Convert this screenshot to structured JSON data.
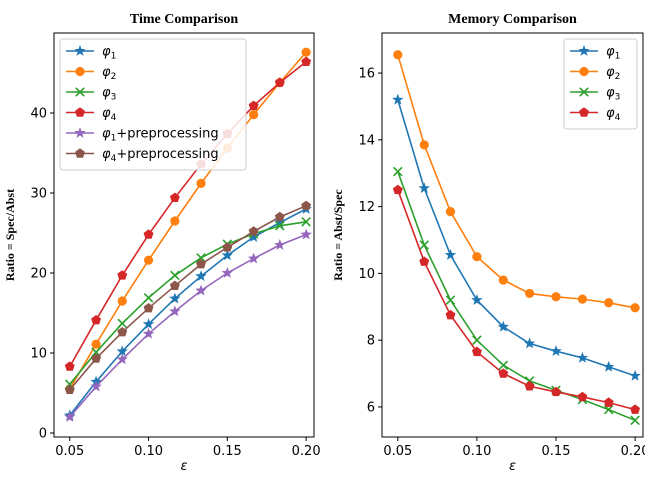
{
  "chart_data": [
    {
      "type": "line",
      "title": "Time Comparison",
      "xlabel": "ε",
      "ylabel": "Ratio = Spec/Abst",
      "xlim": [
        0.04,
        0.205
      ],
      "ylim": [
        -0.5,
        50
      ],
      "xticks": [
        0.05,
        0.1,
        0.15,
        0.2
      ],
      "xtick_labels": [
        "0.05",
        "0.10",
        "0.15",
        "0.20"
      ],
      "yticks": [
        0,
        10,
        20,
        30,
        40
      ],
      "ytick_labels": [
        "0",
        "10",
        "20",
        "30",
        "40"
      ],
      "legend_position": "top-left",
      "x": [
        0.05,
        0.0667,
        0.0833,
        0.1,
        0.1167,
        0.1333,
        0.15,
        0.1667,
        0.1833,
        0.2
      ],
      "series": [
        {
          "name": "φ1",
          "color": "#1f77b4",
          "marker": "star",
          "values": [
            2.2,
            6.4,
            10.2,
            13.6,
            16.8,
            19.6,
            22.2,
            24.5,
            26.3,
            28.0
          ]
        },
        {
          "name": "φ2",
          "color": "#ff7f0e",
          "marker": "circle",
          "values": [
            5.5,
            11.1,
            16.5,
            21.6,
            26.5,
            31.2,
            35.6,
            39.8,
            43.8,
            47.6
          ]
        },
        {
          "name": "φ3",
          "color": "#2ca02c",
          "marker": "x",
          "values": [
            6.1,
            10.1,
            13.7,
            16.9,
            19.7,
            21.9,
            23.6,
            24.9,
            25.9,
            26.4
          ]
        },
        {
          "name": "φ4",
          "color": "#d62728",
          "marker": "pentagon",
          "values": [
            8.3,
            14.1,
            19.7,
            24.8,
            29.4,
            33.6,
            37.4,
            40.9,
            43.8,
            46.4
          ]
        },
        {
          "name": "φ1+preprocessing",
          "color": "#9467bd",
          "marker": "star",
          "values": [
            2.0,
            5.8,
            9.2,
            12.4,
            15.2,
            17.8,
            20.0,
            21.8,
            23.5,
            24.8
          ]
        },
        {
          "name": "φ4+preprocessing",
          "color": "#8c564b",
          "marker": "pentagon",
          "values": [
            5.4,
            9.3,
            12.6,
            15.6,
            18.4,
            21.1,
            23.2,
            25.2,
            27.0,
            28.4
          ]
        }
      ],
      "legend_labels": [
        {
          "base": "φ",
          "sub": "1",
          "suffix": ""
        },
        {
          "base": "φ",
          "sub": "2",
          "suffix": ""
        },
        {
          "base": "φ",
          "sub": "3",
          "suffix": ""
        },
        {
          "base": "φ",
          "sub": "4",
          "suffix": ""
        },
        {
          "base": "φ",
          "sub": "1",
          "suffix": "+preprocessing"
        },
        {
          "base": "φ",
          "sub": "4",
          "suffix": "+preprocessing"
        }
      ]
    },
    {
      "type": "line",
      "title": "Memory Comparison",
      "xlabel": "ε",
      "ylabel": "Ratio = Abst/Spec",
      "xlim": [
        0.04,
        0.205
      ],
      "ylim": [
        5.1,
        17.2
      ],
      "xticks": [
        0.05,
        0.1,
        0.15,
        0.2
      ],
      "xtick_labels": [
        "0.05",
        "0.10",
        "0.15",
        "0.20"
      ],
      "yticks": [
        6,
        8,
        10,
        12,
        14,
        16
      ],
      "ytick_labels": [
        "6",
        "8",
        "10",
        "12",
        "14",
        "16"
      ],
      "legend_position": "top-right",
      "x": [
        0.05,
        0.0667,
        0.0833,
        0.1,
        0.1167,
        0.1333,
        0.15,
        0.1667,
        0.1833,
        0.2
      ],
      "series": [
        {
          "name": "φ1",
          "color": "#1f77b4",
          "marker": "star",
          "values": [
            15.2,
            12.55,
            10.55,
            9.2,
            8.4,
            7.9,
            7.67,
            7.47,
            7.2,
            6.93
          ]
        },
        {
          "name": "φ2",
          "color": "#ff7f0e",
          "marker": "circle",
          "values": [
            16.55,
            13.85,
            11.85,
            10.5,
            9.8,
            9.4,
            9.3,
            9.23,
            9.12,
            8.97
          ]
        },
        {
          "name": "φ3",
          "color": "#2ca02c",
          "marker": "x",
          "values": [
            13.05,
            10.85,
            9.2,
            8.0,
            7.25,
            6.78,
            6.5,
            6.22,
            5.92,
            5.6
          ]
        },
        {
          "name": "φ4",
          "color": "#d62728",
          "marker": "pentagon",
          "values": [
            12.5,
            10.35,
            8.75,
            7.65,
            7.0,
            6.62,
            6.45,
            6.3,
            6.13,
            5.92
          ]
        }
      ],
      "legend_labels": [
        {
          "base": "φ",
          "sub": "1",
          "suffix": ""
        },
        {
          "base": "φ",
          "sub": "2",
          "suffix": ""
        },
        {
          "base": "φ",
          "sub": "3",
          "suffix": ""
        },
        {
          "base": "φ",
          "sub": "4",
          "suffix": ""
        }
      ]
    }
  ]
}
